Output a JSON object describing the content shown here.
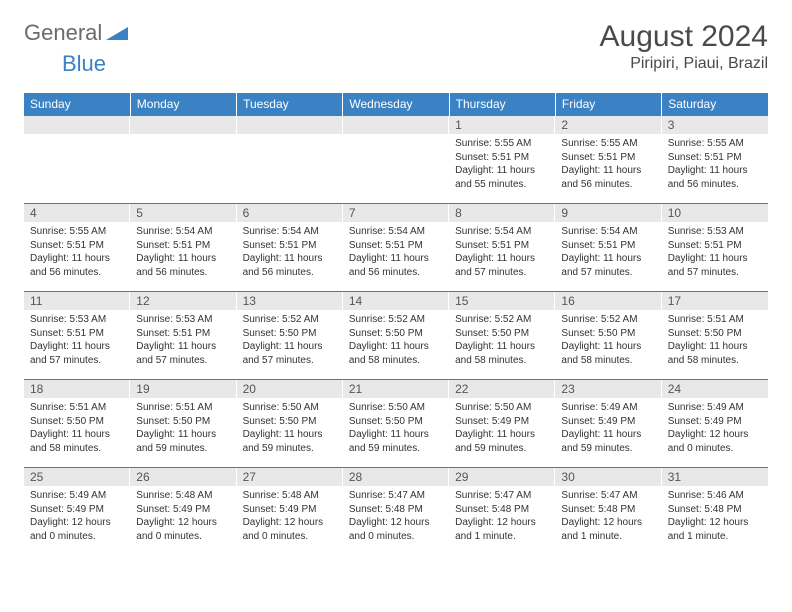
{
  "brand": {
    "part1": "General",
    "part2": "Blue"
  },
  "colors": {
    "header_bg": "#3b82c4",
    "daynum_bg": "#e8e8e8",
    "text": "#333333",
    "logo_gray": "#6b6b6b",
    "logo_blue": "#3b82c4",
    "border": "#3b82c4"
  },
  "title": {
    "month": "August 2024",
    "location": "Piripiri, Piaui, Brazil"
  },
  "weekdays": [
    "Sunday",
    "Monday",
    "Tuesday",
    "Wednesday",
    "Thursday",
    "Friday",
    "Saturday"
  ],
  "weeks": [
    [
      null,
      null,
      null,
      null,
      {
        "n": "1",
        "sr": "Sunrise: 5:55 AM",
        "ss": "Sunset: 5:51 PM",
        "d1": "Daylight: 11 hours",
        "d2": "and 55 minutes."
      },
      {
        "n": "2",
        "sr": "Sunrise: 5:55 AM",
        "ss": "Sunset: 5:51 PM",
        "d1": "Daylight: 11 hours",
        "d2": "and 56 minutes."
      },
      {
        "n": "3",
        "sr": "Sunrise: 5:55 AM",
        "ss": "Sunset: 5:51 PM",
        "d1": "Daylight: 11 hours",
        "d2": "and 56 minutes."
      }
    ],
    [
      {
        "n": "4",
        "sr": "Sunrise: 5:55 AM",
        "ss": "Sunset: 5:51 PM",
        "d1": "Daylight: 11 hours",
        "d2": "and 56 minutes."
      },
      {
        "n": "5",
        "sr": "Sunrise: 5:54 AM",
        "ss": "Sunset: 5:51 PM",
        "d1": "Daylight: 11 hours",
        "d2": "and 56 minutes."
      },
      {
        "n": "6",
        "sr": "Sunrise: 5:54 AM",
        "ss": "Sunset: 5:51 PM",
        "d1": "Daylight: 11 hours",
        "d2": "and 56 minutes."
      },
      {
        "n": "7",
        "sr": "Sunrise: 5:54 AM",
        "ss": "Sunset: 5:51 PM",
        "d1": "Daylight: 11 hours",
        "d2": "and 56 minutes."
      },
      {
        "n": "8",
        "sr": "Sunrise: 5:54 AM",
        "ss": "Sunset: 5:51 PM",
        "d1": "Daylight: 11 hours",
        "d2": "and 57 minutes."
      },
      {
        "n": "9",
        "sr": "Sunrise: 5:54 AM",
        "ss": "Sunset: 5:51 PM",
        "d1": "Daylight: 11 hours",
        "d2": "and 57 minutes."
      },
      {
        "n": "10",
        "sr": "Sunrise: 5:53 AM",
        "ss": "Sunset: 5:51 PM",
        "d1": "Daylight: 11 hours",
        "d2": "and 57 minutes."
      }
    ],
    [
      {
        "n": "11",
        "sr": "Sunrise: 5:53 AM",
        "ss": "Sunset: 5:51 PM",
        "d1": "Daylight: 11 hours",
        "d2": "and 57 minutes."
      },
      {
        "n": "12",
        "sr": "Sunrise: 5:53 AM",
        "ss": "Sunset: 5:51 PM",
        "d1": "Daylight: 11 hours",
        "d2": "and 57 minutes."
      },
      {
        "n": "13",
        "sr": "Sunrise: 5:52 AM",
        "ss": "Sunset: 5:50 PM",
        "d1": "Daylight: 11 hours",
        "d2": "and 57 minutes."
      },
      {
        "n": "14",
        "sr": "Sunrise: 5:52 AM",
        "ss": "Sunset: 5:50 PM",
        "d1": "Daylight: 11 hours",
        "d2": "and 58 minutes."
      },
      {
        "n": "15",
        "sr": "Sunrise: 5:52 AM",
        "ss": "Sunset: 5:50 PM",
        "d1": "Daylight: 11 hours",
        "d2": "and 58 minutes."
      },
      {
        "n": "16",
        "sr": "Sunrise: 5:52 AM",
        "ss": "Sunset: 5:50 PM",
        "d1": "Daylight: 11 hours",
        "d2": "and 58 minutes."
      },
      {
        "n": "17",
        "sr": "Sunrise: 5:51 AM",
        "ss": "Sunset: 5:50 PM",
        "d1": "Daylight: 11 hours",
        "d2": "and 58 minutes."
      }
    ],
    [
      {
        "n": "18",
        "sr": "Sunrise: 5:51 AM",
        "ss": "Sunset: 5:50 PM",
        "d1": "Daylight: 11 hours",
        "d2": "and 58 minutes."
      },
      {
        "n": "19",
        "sr": "Sunrise: 5:51 AM",
        "ss": "Sunset: 5:50 PM",
        "d1": "Daylight: 11 hours",
        "d2": "and 59 minutes."
      },
      {
        "n": "20",
        "sr": "Sunrise: 5:50 AM",
        "ss": "Sunset: 5:50 PM",
        "d1": "Daylight: 11 hours",
        "d2": "and 59 minutes."
      },
      {
        "n": "21",
        "sr": "Sunrise: 5:50 AM",
        "ss": "Sunset: 5:50 PM",
        "d1": "Daylight: 11 hours",
        "d2": "and 59 minutes."
      },
      {
        "n": "22",
        "sr": "Sunrise: 5:50 AM",
        "ss": "Sunset: 5:49 PM",
        "d1": "Daylight: 11 hours",
        "d2": "and 59 minutes."
      },
      {
        "n": "23",
        "sr": "Sunrise: 5:49 AM",
        "ss": "Sunset: 5:49 PM",
        "d1": "Daylight: 11 hours",
        "d2": "and 59 minutes."
      },
      {
        "n": "24",
        "sr": "Sunrise: 5:49 AM",
        "ss": "Sunset: 5:49 PM",
        "d1": "Daylight: 12 hours",
        "d2": "and 0 minutes."
      }
    ],
    [
      {
        "n": "25",
        "sr": "Sunrise: 5:49 AM",
        "ss": "Sunset: 5:49 PM",
        "d1": "Daylight: 12 hours",
        "d2": "and 0 minutes."
      },
      {
        "n": "26",
        "sr": "Sunrise: 5:48 AM",
        "ss": "Sunset: 5:49 PM",
        "d1": "Daylight: 12 hours",
        "d2": "and 0 minutes."
      },
      {
        "n": "27",
        "sr": "Sunrise: 5:48 AM",
        "ss": "Sunset: 5:49 PM",
        "d1": "Daylight: 12 hours",
        "d2": "and 0 minutes."
      },
      {
        "n": "28",
        "sr": "Sunrise: 5:47 AM",
        "ss": "Sunset: 5:48 PM",
        "d1": "Daylight: 12 hours",
        "d2": "and 0 minutes."
      },
      {
        "n": "29",
        "sr": "Sunrise: 5:47 AM",
        "ss": "Sunset: 5:48 PM",
        "d1": "Daylight: 12 hours",
        "d2": "and 1 minute."
      },
      {
        "n": "30",
        "sr": "Sunrise: 5:47 AM",
        "ss": "Sunset: 5:48 PM",
        "d1": "Daylight: 12 hours",
        "d2": "and 1 minute."
      },
      {
        "n": "31",
        "sr": "Sunrise: 5:46 AM",
        "ss": "Sunset: 5:48 PM",
        "d1": "Daylight: 12 hours",
        "d2": "and 1 minute."
      }
    ]
  ]
}
